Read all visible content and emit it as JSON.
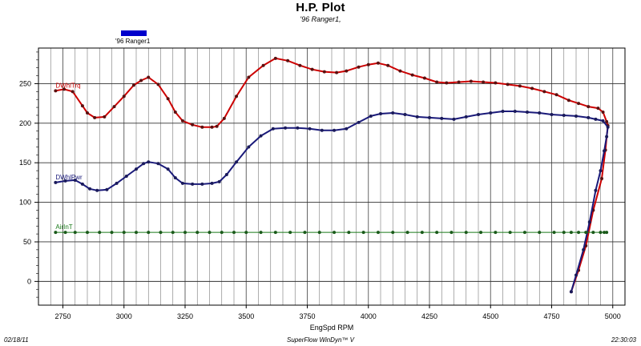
{
  "header": {
    "title": "H.P. Plot",
    "subtitle": "'96 Ranger1,"
  },
  "legend": {
    "label": "'96 Ranger1",
    "color": "#0000cc"
  },
  "footer": {
    "date": "02/18/11",
    "app": "SuperFlow WinDyn™ V",
    "time": "22:30:03"
  },
  "chart_data": {
    "type": "line",
    "xlabel": "EngSpd RPM",
    "ylabel": "",
    "xlim": [
      2650,
      5050
    ],
    "ylim": [
      -30,
      295
    ],
    "xticks": [
      2750,
      3000,
      3250,
      3500,
      3750,
      4000,
      4250,
      4500,
      4750,
      5000
    ],
    "yticks": [
      0,
      50,
      100,
      150,
      200,
      250
    ],
    "grid": true,
    "series": [
      {
        "name": "DWhlTrq",
        "color": "#cc0000",
        "dot_color": "#5a1010",
        "points": [
          [
            2720,
            241
          ],
          [
            2755,
            243
          ],
          [
            2790,
            240
          ],
          [
            2830,
            222
          ],
          [
            2850,
            213
          ],
          [
            2880,
            207
          ],
          [
            2920,
            208
          ],
          [
            2960,
            221
          ],
          [
            3000,
            234
          ],
          [
            3040,
            248
          ],
          [
            3070,
            254
          ],
          [
            3100,
            258
          ],
          [
            3140,
            249
          ],
          [
            3180,
            231
          ],
          [
            3210,
            214
          ],
          [
            3240,
            203
          ],
          [
            3280,
            198
          ],
          [
            3320,
            195
          ],
          [
            3360,
            195
          ],
          [
            3380,
            196
          ],
          [
            3410,
            206
          ],
          [
            3460,
            234
          ],
          [
            3510,
            258
          ],
          [
            3570,
            273
          ],
          [
            3620,
            282
          ],
          [
            3670,
            279
          ],
          [
            3720,
            273
          ],
          [
            3770,
            268
          ],
          [
            3820,
            265
          ],
          [
            3870,
            264
          ],
          [
            3910,
            266
          ],
          [
            3960,
            271
          ],
          [
            4000,
            274
          ],
          [
            4040,
            276
          ],
          [
            4080,
            273
          ],
          [
            4130,
            266
          ],
          [
            4180,
            261
          ],
          [
            4230,
            257
          ],
          [
            4280,
            252
          ],
          [
            4320,
            251
          ],
          [
            4370,
            252
          ],
          [
            4420,
            253
          ],
          [
            4470,
            252
          ],
          [
            4520,
            251
          ],
          [
            4570,
            249
          ],
          [
            4620,
            247
          ],
          [
            4670,
            244
          ],
          [
            4720,
            240
          ],
          [
            4770,
            236
          ],
          [
            4820,
            229
          ],
          [
            4860,
            225
          ],
          [
            4900,
            221
          ],
          [
            4940,
            219
          ],
          [
            4960,
            214
          ],
          [
            4975,
            202
          ],
          [
            4980,
            197
          ],
          [
            4970,
            166
          ],
          [
            4955,
            130
          ],
          [
            4920,
            90
          ],
          [
            4890,
            45
          ],
          [
            4860,
            14
          ],
          [
            4830,
            -13
          ]
        ]
      },
      {
        "name": "DWhlPwr",
        "color": "#1a1a7a",
        "dot_color": "#1a1a5a",
        "points": [
          [
            2720,
            125
          ],
          [
            2760,
            127
          ],
          [
            2800,
            128
          ],
          [
            2830,
            123
          ],
          [
            2860,
            117
          ],
          [
            2890,
            115
          ],
          [
            2930,
            116
          ],
          [
            2970,
            124
          ],
          [
            3010,
            133
          ],
          [
            3050,
            142
          ],
          [
            3080,
            149
          ],
          [
            3100,
            151
          ],
          [
            3140,
            149
          ],
          [
            3180,
            142
          ],
          [
            3210,
            131
          ],
          [
            3240,
            124
          ],
          [
            3280,
            123
          ],
          [
            3320,
            123
          ],
          [
            3360,
            124
          ],
          [
            3390,
            126
          ],
          [
            3420,
            135
          ],
          [
            3460,
            151
          ],
          [
            3510,
            170
          ],
          [
            3560,
            184
          ],
          [
            3610,
            193
          ],
          [
            3660,
            194
          ],
          [
            3710,
            194
          ],
          [
            3760,
            193
          ],
          [
            3810,
            191
          ],
          [
            3860,
            191
          ],
          [
            3910,
            193
          ],
          [
            3960,
            201
          ],
          [
            4010,
            209
          ],
          [
            4050,
            212
          ],
          [
            4100,
            213
          ],
          [
            4150,
            211
          ],
          [
            4200,
            208
          ],
          [
            4250,
            207
          ],
          [
            4300,
            206
          ],
          [
            4350,
            205
          ],
          [
            4400,
            208
          ],
          [
            4450,
            211
          ],
          [
            4500,
            213
          ],
          [
            4550,
            215
          ],
          [
            4600,
            215
          ],
          [
            4650,
            214
          ],
          [
            4700,
            213
          ],
          [
            4750,
            211
          ],
          [
            4800,
            210
          ],
          [
            4850,
            209
          ],
          [
            4900,
            207
          ],
          [
            4930,
            205
          ],
          [
            4960,
            203
          ],
          [
            4980,
            195
          ],
          [
            4975,
            183
          ],
          [
            4965,
            165
          ],
          [
            4950,
            140
          ],
          [
            4930,
            115
          ],
          [
            4905,
            75
          ],
          [
            4880,
            40
          ],
          [
            4850,
            8
          ],
          [
            4830,
            -13
          ]
        ]
      },
      {
        "name": "AirInT",
        "color": "#1a7a1a",
        "dot_color": "#1a5a1a",
        "points": [
          [
            2720,
            62
          ],
          [
            2760,
            62
          ],
          [
            2800,
            62
          ],
          [
            2850,
            62
          ],
          [
            2900,
            62
          ],
          [
            2950,
            62
          ],
          [
            3000,
            62
          ],
          [
            3050,
            62
          ],
          [
            3100,
            62
          ],
          [
            3150,
            62
          ],
          [
            3200,
            62
          ],
          [
            3250,
            62
          ],
          [
            3300,
            62
          ],
          [
            3350,
            62
          ],
          [
            3400,
            62
          ],
          [
            3450,
            62
          ],
          [
            3500,
            62
          ],
          [
            3560,
            62
          ],
          [
            3620,
            62
          ],
          [
            3680,
            62
          ],
          [
            3740,
            62
          ],
          [
            3800,
            62
          ],
          [
            3860,
            62
          ],
          [
            3920,
            62
          ],
          [
            3980,
            62
          ],
          [
            4040,
            62
          ],
          [
            4100,
            62
          ],
          [
            4160,
            62
          ],
          [
            4220,
            62
          ],
          [
            4280,
            62
          ],
          [
            4340,
            62
          ],
          [
            4400,
            62
          ],
          [
            4460,
            62
          ],
          [
            4520,
            62
          ],
          [
            4580,
            62
          ],
          [
            4640,
            62
          ],
          [
            4700,
            62
          ],
          [
            4760,
            62
          ],
          [
            4800,
            62
          ],
          [
            4830,
            62
          ],
          [
            4860,
            62
          ],
          [
            4890,
            62
          ],
          [
            4920,
            62
          ],
          [
            4950,
            62
          ],
          [
            4965,
            62
          ],
          [
            4975,
            62
          ]
        ]
      }
    ]
  }
}
